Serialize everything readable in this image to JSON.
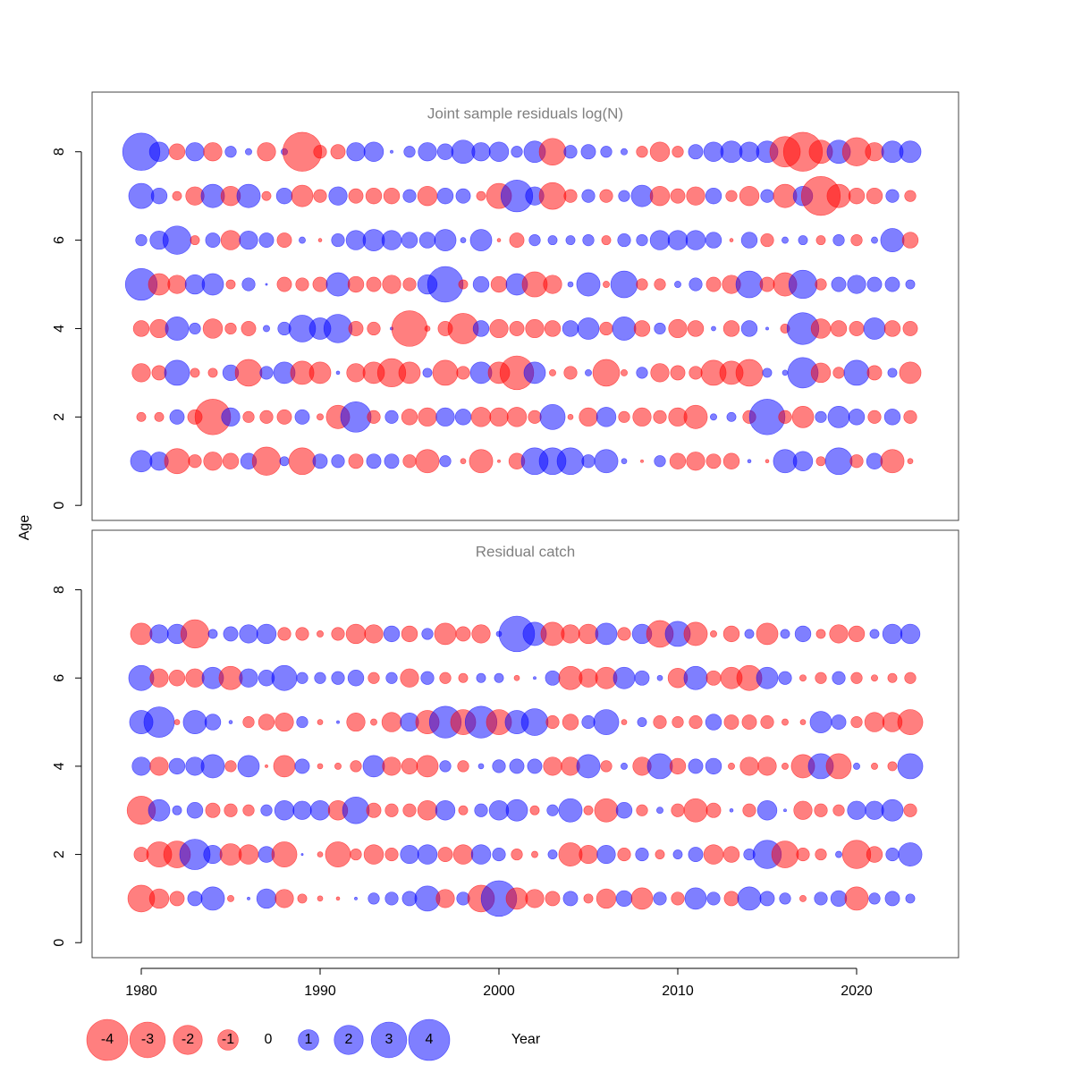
{
  "chart_data": {
    "type": "bubble",
    "xlabel": "Year",
    "ylabel": "Age",
    "x": [
      1980,
      1981,
      1982,
      1983,
      1984,
      1985,
      1986,
      1987,
      1988,
      1989,
      1990,
      1991,
      1992,
      1993,
      1994,
      1995,
      1996,
      1997,
      1998,
      1999,
      2000,
      2001,
      2002,
      2003,
      2004,
      2005,
      2006,
      2007,
      2008,
      2009,
      2010,
      2011,
      2012,
      2013,
      2014,
      2015,
      2016,
      2017,
      2018,
      2019,
      2020,
      2021,
      2022,
      2023
    ],
    "xlim": [
      1977.25,
      2025.7
    ],
    "xticks": [
      1980,
      1990,
      2000,
      2010,
      2020
    ],
    "ylim": [
      -0.34,
      9.35
    ],
    "yticks": [
      0,
      2,
      4,
      6,
      8
    ],
    "colors": {
      "positive": "#0000ff",
      "negative": "#ff0000"
    },
    "legend_sizes": [
      -4,
      -3,
      -2,
      -1,
      0,
      1,
      2,
      3,
      4
    ],
    "panels": [
      {
        "title": "Joint sample residuals log(N)",
        "ages": [
          1,
          2,
          3,
          4,
          5,
          6,
          7,
          8
        ],
        "values": [
          [
            1.1,
            0.8,
            -1.5,
            -0.4,
            -0.8,
            -0.6,
            0.6,
            -1.9,
            0.2,
            -1.7,
            0.5,
            0.4,
            -0.5,
            0.5,
            0.5,
            -0.4,
            -1.3,
            0.3,
            -0.07,
            -1.3,
            -0.02,
            -0.6,
            1.7,
            1.7,
            1.7,
            0.4,
            1.3,
            0.07,
            -0.02,
            0.3,
            -0.6,
            -0.8,
            -0.5,
            -0.6,
            0.03,
            -0.03,
            1.3,
            0.9,
            -0.2,
            1.7,
            -0.4,
            0.6,
            -1.3,
            -0.07
          ],
          [
            -0.2,
            -0.2,
            0.5,
            -0.5,
            -3.0,
            0.8,
            -0.3,
            -0.4,
            -0.5,
            0.5,
            -0.1,
            -1.3,
            2.2,
            -0.4,
            0.4,
            -0.6,
            -0.8,
            0.8,
            0.6,
            -0.9,
            -0.8,
            -0.9,
            -0.4,
            1.5,
            -0.07,
            -0.8,
            0.9,
            -0.3,
            -0.8,
            -0.4,
            -0.8,
            -1.3,
            0.1,
            0.2,
            -0.4,
            3.0,
            -0.4,
            -1.1,
            0.3,
            1.1,
            0.6,
            -0.4,
            0.6,
            -0.4
          ],
          [
            -0.8,
            -0.5,
            1.5,
            -0.2,
            -0.2,
            0.6,
            -1.7,
            0.4,
            1.1,
            -1.3,
            -1.1,
            0.03,
            -0.8,
            -1.1,
            -1.9,
            -1.1,
            0.2,
            -1.5,
            -0.4,
            1.1,
            -1.1,
            -2.7,
            1.1,
            -0.1,
            -0.4,
            0.1,
            -1.7,
            -0.1,
            0.3,
            -0.8,
            -0.5,
            -0.4,
            -1.5,
            -1.3,
            -1.7,
            0.2,
            0.07,
            2.2,
            -0.9,
            -0.3,
            1.5,
            -0.5,
            0.2,
            -1.1
          ],
          [
            -0.6,
            -0.8,
            1.3,
            0.3,
            -0.9,
            -0.3,
            -0.5,
            0.1,
            0.4,
            1.7,
            1.1,
            1.9,
            -0.5,
            -0.4,
            0.02,
            -3.0,
            -0.07,
            -0.5,
            -2.2,
            0.6,
            -0.8,
            -0.5,
            -0.8,
            -0.6,
            0.6,
            1.1,
            -0.4,
            1.3,
            -0.6,
            0.3,
            -0.8,
            -0.6,
            0.05,
            -0.6,
            0.6,
            0.02,
            -0.2,
            2.4,
            -0.9,
            -0.6,
            -0.5,
            1.1,
            -0.6,
            -0.5
          ],
          [
            2.4,
            -1.1,
            -0.8,
            0.9,
            1.1,
            -0.2,
            0.4,
            0.01,
            -0.5,
            -0.4,
            -0.5,
            1.3,
            -0.6,
            -0.5,
            -0.8,
            -0.4,
            0.9,
            3.0,
            -0.2,
            0.6,
            -0.6,
            1.1,
            -1.5,
            -0.8,
            0.07,
            1.3,
            -0.1,
            1.7,
            -0.3,
            -0.3,
            0.1,
            0.4,
            -0.5,
            -0.8,
            1.7,
            -0.5,
            -1.3,
            1.9,
            -0.3,
            0.5,
            0.8,
            0.5,
            0.5,
            0.2
          ],
          [
            0.3,
            0.8,
            1.9,
            -0.2,
            0.5,
            -0.9,
            0.8,
            0.5,
            -0.5,
            0.1,
            -0.03,
            0.4,
            0.9,
            1.1,
            0.9,
            0.6,
            0.6,
            1.1,
            0.07,
            1.1,
            -0.03,
            -0.5,
            0.3,
            0.2,
            0.2,
            0.3,
            -0.2,
            0.4,
            0.3,
            0.9,
            0.9,
            0.9,
            0.6,
            -0.03,
            0.6,
            -0.4,
            0.1,
            0.2,
            -0.2,
            0.3,
            -0.3,
            0.1,
            1.3,
            -0.6
          ],
          [
            1.5,
            0.6,
            -0.2,
            -0.8,
            1.3,
            -0.9,
            1.3,
            -0.2,
            0.6,
            -1.1,
            -0.4,
            0.8,
            -0.5,
            -0.6,
            -0.6,
            0.4,
            -0.9,
            0.6,
            0.5,
            -0.2,
            -1.5,
            2.4,
            0.8,
            -1.7,
            -0.4,
            0.4,
            -0.4,
            0.3,
            1.1,
            -0.9,
            -0.5,
            -0.8,
            0.6,
            -0.3,
            -0.9,
            0.4,
            -1.3,
            0.9,
            -3.6,
            -1.3,
            -0.6,
            -0.6,
            0.4,
            -0.3
          ],
          [
            3.3,
            0.9,
            -0.6,
            0.8,
            -0.8,
            0.3,
            0.1,
            -0.8,
            0.1,
            -3.6,
            -0.4,
            -0.5,
            0.8,
            0.9,
            0.02,
            0.3,
            0.8,
            0.6,
            1.3,
            0.8,
            0.9,
            0.3,
            1.1,
            -1.7,
            0.4,
            0.5,
            0.3,
            0.1,
            -0.3,
            -0.9,
            -0.3,
            0.5,
            0.9,
            1.1,
            0.9,
            1.1,
            -2.2,
            -3.6,
            -1.3,
            1.3,
            -1.9,
            -0.8,
            1.1,
            1.1
          ]
        ]
      },
      {
        "title": "Residual catch",
        "ages": [
          1,
          2,
          3,
          4,
          5,
          6,
          7
        ],
        "values": [
          [
            -1.7,
            -0.9,
            -0.5,
            0.5,
            1.3,
            -0.1,
            0.02,
            0.9,
            -0.8,
            -0.2,
            -0.07,
            -0.03,
            0.02,
            0.3,
            0.4,
            0.5,
            1.5,
            -0.8,
            0.4,
            -1.7,
            3.0,
            -1.1,
            -0.8,
            -0.5,
            0.5,
            -0.2,
            -0.9,
            0.6,
            -1.1,
            0.4,
            -0.4,
            1.1,
            0.4,
            -0.5,
            1.3,
            0.5,
            0.3,
            -0.1,
            0.4,
            0.6,
            -1.3,
            0.3,
            0.5,
            0.2
          ],
          [
            -0.5,
            -1.5,
            -1.7,
            2.2,
            0.8,
            -1.1,
            -0.9,
            0.6,
            -1.5,
            0.01,
            -0.07,
            -1.5,
            -0.3,
            -0.9,
            -0.4,
            0.8,
            0.9,
            -0.5,
            -0.9,
            0.9,
            0.4,
            -0.3,
            -0.1,
            0.2,
            -1.3,
            -0.8,
            0.8,
            -0.4,
            0.4,
            -0.2,
            0.2,
            0.5,
            -0.9,
            -0.6,
            0.3,
            1.9,
            -1.7,
            -0.4,
            -0.3,
            0.1,
            -1.9,
            -0.6,
            0.4,
            1.3
          ],
          [
            -1.9,
            1.1,
            0.2,
            0.6,
            -0.5,
            -0.4,
            -0.3,
            0.3,
            0.9,
            0.8,
            0.9,
            -0.9,
            1.7,
            -0.5,
            -0.4,
            -0.4,
            -0.9,
            0.9,
            -0.2,
            0.4,
            0.9,
            1.1,
            -0.2,
            0.3,
            1.3,
            -0.2,
            -1.3,
            0.6,
            -0.3,
            0.1,
            -0.4,
            -1.3,
            -0.5,
            0.03,
            -0.4,
            0.9,
            0.02,
            -0.8,
            -0.4,
            -0.3,
            0.8,
            0.8,
            1.1,
            -0.4
          ],
          [
            0.8,
            -0.8,
            0.6,
            0.8,
            1.3,
            -0.3,
            1.1,
            -0.02,
            -1.1,
            0.5,
            -0.07,
            -0.1,
            -0.3,
            1.1,
            -0.8,
            -0.6,
            -1.1,
            0.3,
            -0.3,
            0.07,
            0.4,
            0.5,
            0.5,
            -0.8,
            -0.8,
            1.3,
            -0.3,
            0.1,
            -0.8,
            1.5,
            -0.6,
            0.5,
            0.6,
            -0.1,
            -0.8,
            -0.8,
            -0.1,
            -1.3,
            1.5,
            -1.5,
            0.1,
            -0.1,
            -0.2,
            1.5
          ],
          [
            1.3,
            2.2,
            -0.07,
            1.3,
            0.6,
            0.03,
            -0.3,
            -0.6,
            -0.8,
            0.3,
            -0.07,
            0.02,
            -0.8,
            -0.1,
            -0.9,
            0.8,
            -1.3,
            2.4,
            -1.5,
            2.4,
            -1.5,
            1.3,
            1.7,
            -0.4,
            -0.6,
            0.4,
            1.5,
            -0.07,
            0.2,
            -0.4,
            -0.3,
            -0.4,
            0.6,
            -0.5,
            -0.5,
            -0.4,
            -0.1,
            -0.07,
            1.1,
            0.5,
            -0.3,
            -0.9,
            -0.9,
            -1.5
          ],
          [
            1.5,
            -0.8,
            -0.6,
            -0.8,
            1.1,
            -1.3,
            0.8,
            0.6,
            1.5,
            0.3,
            0.3,
            0.4,
            0.6,
            -0.3,
            0.3,
            -0.8,
            0.4,
            -0.3,
            -0.2,
            0.2,
            0.2,
            -0.07,
            0.02,
            0.5,
            -1.3,
            -0.8,
            -1.1,
            1.1,
            0.5,
            0.07,
            -0.9,
            1.3,
            -0.5,
            -1.1,
            -1.5,
            1.1,
            0.4,
            -0.1,
            -0.3,
            0.4,
            -0.3,
            -0.1,
            -0.2,
            -0.3
          ],
          [
            -1.1,
            0.8,
            0.9,
            -1.9,
            0.2,
            0.5,
            0.8,
            0.9,
            -0.4,
            -0.4,
            -0.1,
            -0.4,
            -0.9,
            -0.8,
            0.6,
            -0.6,
            0.3,
            -1.1,
            -0.5,
            -0.8,
            0.07,
            3.0,
            1.3,
            -1.3,
            -0.8,
            -0.9,
            1.1,
            -0.4,
            0.9,
            -1.7,
            1.5,
            -1.3,
            -0.1,
            -0.6,
            0.2,
            -1.1,
            0.2,
            0.6,
            -0.2,
            -0.8,
            -0.6,
            0.2,
            0.9,
            0.9
          ]
        ]
      }
    ]
  }
}
